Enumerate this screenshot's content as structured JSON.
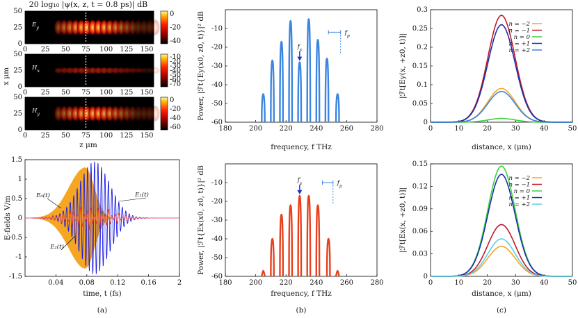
{
  "figure": {
    "captions": [
      "(a)",
      "(b)",
      "(c)"
    ]
  },
  "panel_a_top": {
    "title": "20 log₁₀ |ψ(x, z, t = 0.8 ps)| dB",
    "ylabel": "x μm",
    "xlabel": "z μm",
    "maps": [
      {
        "label": "Ey",
        "colorbar_ticks": [
          "0",
          "-20",
          "-40"
        ]
      },
      {
        "label": "Hx",
        "colorbar_ticks": [
          "-10",
          "-20",
          "-30",
          "-40",
          "-50",
          "-60",
          "-70"
        ]
      },
      {
        "label": "Hy",
        "colorbar_ticks": [
          "0",
          "-20",
          "-40",
          "-60"
        ]
      }
    ],
    "x_ticks": [
      "0",
      "25",
      "50",
      "75",
      "100",
      "125",
      "150"
    ],
    "y_ticks": [
      "0",
      "25",
      "50"
    ]
  },
  "chart_data": [
    {
      "id": "a_bottom",
      "type": "line",
      "title": "",
      "xlabel": "time, t (fs)",
      "ylabel": "E-fields V/m",
      "x_ticks": [
        "0.04",
        "0.08",
        "0.12",
        "0.16",
        "2"
      ],
      "y_ticks": [
        "1.5",
        "1",
        "0.5",
        "0",
        "-0.5",
        "-1",
        "-1.5"
      ],
      "ylim": [
        -1.5,
        1.5
      ],
      "xlim": [
        0,
        0.2
      ],
      "series": [
        {
          "name": "E₀(t)",
          "envelope_peak": 1.3,
          "peak_time": 0.078,
          "color": "#f5a623"
        },
        {
          "name": "E₁(t)",
          "envelope_peak": 1.45,
          "peak_time": 0.09,
          "color": "#1a1ae6"
        },
        {
          "name": "E₂(t)",
          "envelope_peak": 0.3,
          "peak_time": 0.085,
          "color": "#e8401c"
        }
      ]
    },
    {
      "id": "b_top",
      "type": "bar",
      "xlabel": "frequency, f THz",
      "ylabel": "Power, |ℱt{Ey(x0, z0, t)}|² dB",
      "x_ticks": [
        "180",
        "200",
        "220",
        "240",
        "260",
        "280"
      ],
      "y_ticks": [
        "-10",
        "-20",
        "-30",
        "-40",
        "-50",
        "-60"
      ],
      "xlim": [
        180,
        280
      ],
      "ylim": [
        -60,
        0
      ],
      "annotations": [
        "fs",
        "fp"
      ],
      "peaks": [
        {
          "f": 205,
          "db": -45
        },
        {
          "f": 211,
          "db": -27
        },
        {
          "f": 217,
          "db": -17
        },
        {
          "f": 223,
          "db": -6
        },
        {
          "f": 229,
          "db": -28
        },
        {
          "f": 235,
          "db": -5
        },
        {
          "f": 241,
          "db": -16
        },
        {
          "f": 247,
          "db": -26
        },
        {
          "f": 254,
          "db": -45
        }
      ],
      "color": "#3b86e0"
    },
    {
      "id": "b_bottom",
      "type": "bar",
      "xlabel": "frequency, f THz",
      "ylabel": "Power, |ℱt{Ex(x0, z0, t)}|² dB",
      "x_ticks": [
        "180",
        "200",
        "220",
        "240",
        "260",
        "280"
      ],
      "y_ticks": [
        "-10",
        "-20",
        "-30",
        "-40",
        "-50",
        "-60"
      ],
      "xlim": [
        180,
        280
      ],
      "ylim": [
        -60,
        0
      ],
      "annotations": [
        "fs",
        "fp"
      ],
      "peaks": [
        {
          "f": 205,
          "db": -57
        },
        {
          "f": 211,
          "db": -40
        },
        {
          "f": 217,
          "db": -27
        },
        {
          "f": 223,
          "db": -22
        },
        {
          "f": 229,
          "db": -17
        },
        {
          "f": 235,
          "db": -17
        },
        {
          "f": 241,
          "db": -22
        },
        {
          "f": 248,
          "db": -40
        },
        {
          "f": 254,
          "db": -57
        }
      ],
      "color": "#e8401c"
    },
    {
      "id": "c_top",
      "type": "line",
      "xlabel": "distance, x (μm)",
      "ylabel": "|ℱt[Ey(x, +z0, t)]|",
      "x_ticks": [
        "0",
        "10",
        "20",
        "30",
        "40",
        "50"
      ],
      "y_ticks": [
        "0",
        "0.05",
        "0.1",
        "0.15",
        "0.2",
        "0.25",
        "0.3"
      ],
      "xlim": [
        0,
        50
      ],
      "ylim": [
        0,
        0.3
      ],
      "center": 25,
      "sigma": 4.8,
      "series": [
        {
          "name": "n = −2",
          "peak": 0.09,
          "color": "#f5a623"
        },
        {
          "name": "n = −1",
          "peak": 0.285,
          "color": "#c0182b"
        },
        {
          "name": "n = 0",
          "peak": 0.01,
          "color": "#3ecf3e"
        },
        {
          "name": "n = +1",
          "peak": 0.26,
          "color": "#1a2fa8"
        },
        {
          "name": "n = +2",
          "peak": 0.082,
          "color": "#3b86e0"
        }
      ]
    },
    {
      "id": "c_bottom",
      "type": "line",
      "xlabel": "distance, x (μm)",
      "ylabel": "|ℱt[Ex(x, +z0, t)]|",
      "x_ticks": [
        "0",
        "10",
        "20",
        "30",
        "40",
        "50"
      ],
      "y_ticks": [
        "0",
        "0.03",
        "0.06",
        "0.09",
        "0.12",
        "0.15"
      ],
      "xlim": [
        0,
        50
      ],
      "ylim": [
        0,
        0.15
      ],
      "center": 25,
      "sigma": 4.8,
      "series": [
        {
          "name": "n = −2",
          "peak": 0.04,
          "color": "#f5a623"
        },
        {
          "name": "n = −1",
          "peak": 0.069,
          "color": "#c0182b"
        },
        {
          "name": "n = 0",
          "peak": 0.147,
          "color": "#3ecf3e"
        },
        {
          "name": "n = +1",
          "peak": 0.136,
          "color": "#1a2fa8"
        },
        {
          "name": "n = +2",
          "peak": 0.05,
          "color": "#5ad0e8"
        }
      ]
    }
  ]
}
